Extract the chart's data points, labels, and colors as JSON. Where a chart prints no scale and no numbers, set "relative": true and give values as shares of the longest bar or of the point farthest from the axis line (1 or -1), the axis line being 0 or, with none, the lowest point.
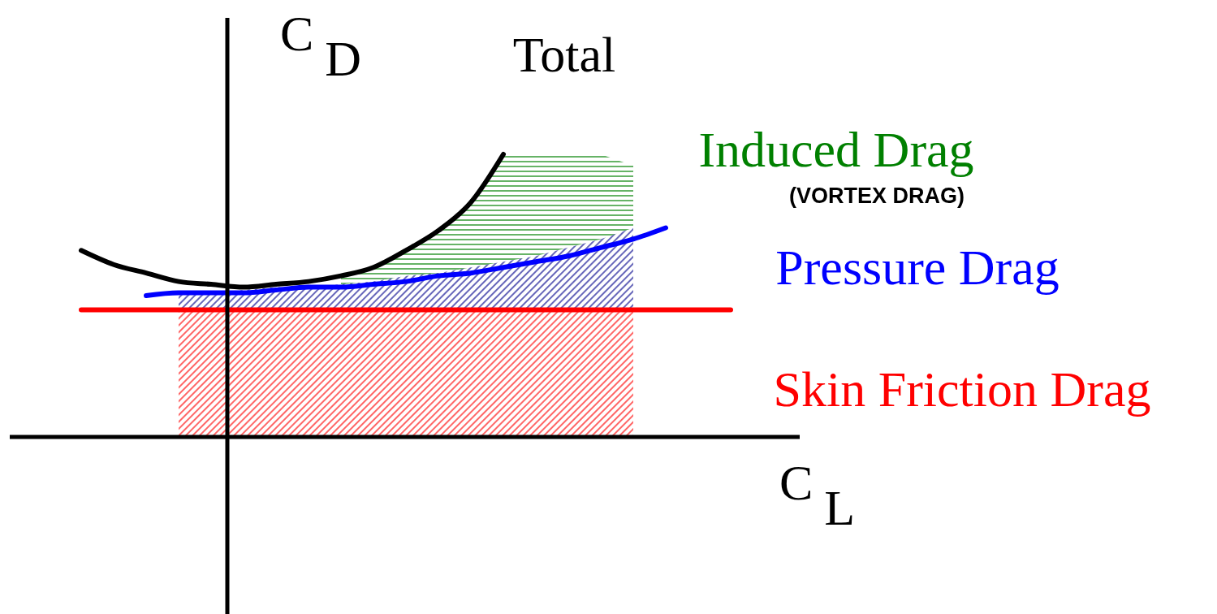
{
  "chart_data": {
    "type": "line",
    "relative": true,
    "xlabel": "C$_{L}$",
    "ylabel": "C$_{D}$",
    "annotations": [
      "(VORTEX DRAG)"
    ],
    "categories": [
      null,
      null,
      null,
      null,
      null,
      null,
      null,
      null,
      null,
      null,
      null,
      null,
      null,
      null,
      null,
      null,
      null,
      null,
      null,
      null,
      null
    ],
    "series": [
      {
        "type": "area",
        "name": "Induced Drag",
        "color": "#008000",
        "values": [
          null,
          null,
          null,
          null,
          null,
          null,
          null,
          null,
          0.57,
          0.6,
          0.66,
          0.73,
          0.83,
          1,
          1,
          1,
          1,
          0.96,
          null,
          null,
          null
        ]
      },
      {
        "type": "area",
        "color": "#00008b",
        "values": [
          null,
          null,
          null,
          0.51,
          0.51,
          0.52,
          0.53,
          0.53,
          0.54,
          0.55,
          0.57,
          0.58,
          0.6,
          0.62,
          0.64,
          0.67,
          0.7,
          0.74,
          null,
          null,
          null
        ]
      },
      {
        "type": "area",
        "color": "#ff0000",
        "values": [
          null,
          null,
          null,
          0.45,
          0.45,
          0.45,
          0.45,
          0.45,
          0.45,
          0.45,
          0.45,
          0.45,
          0.45,
          0.45,
          0.45,
          0.45,
          0.45,
          0.45,
          null,
          null,
          null
        ]
      },
      {
        "name": "Skin Friction Drag",
        "color": "#ff0000",
        "values": [
          0.45,
          0.45,
          0.45,
          0.45,
          0.45,
          0.45,
          0.45,
          0.45,
          0.45,
          0.45,
          0.45,
          0.45,
          0.45,
          0.45,
          0.45,
          0.45,
          0.45,
          0.45,
          0.45,
          0.45,
          0.45
        ]
      },
      {
        "name": "Pressure Drag",
        "color": "#0000ff",
        "values": [
          null,
          null,
          0.5,
          0.51,
          0.51,
          0.51,
          0.52,
          0.53,
          0.53,
          0.54,
          0.55,
          0.57,
          0.58,
          0.6,
          0.62,
          0.64,
          0.67,
          0.7,
          0.74,
          null,
          null
        ]
      },
      {
        "name": "Total",
        "color": "#000000",
        "values": [
          0.66,
          0.61,
          0.58,
          0.55,
          0.54,
          0.53,
          0.54,
          0.55,
          0.57,
          0.6,
          0.66,
          0.73,
          0.83,
          1,
          null,
          null,
          null,
          null,
          null,
          null,
          null
        ]
      }
    ]
  }
}
